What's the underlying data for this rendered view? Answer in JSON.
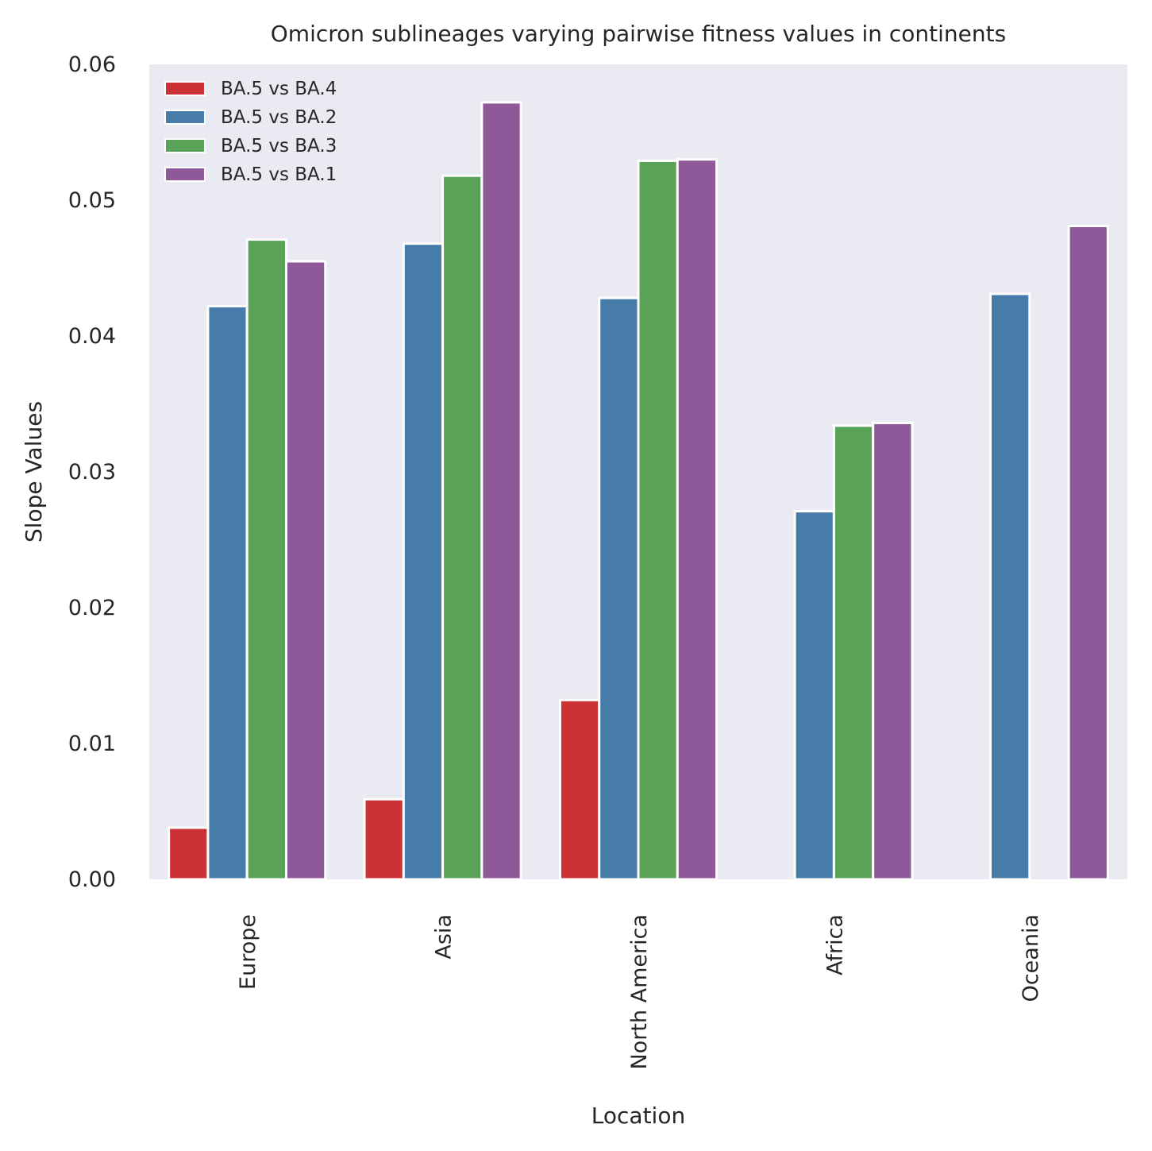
{
  "chart_data": {
    "type": "bar",
    "title": "Omicron sublineages varying pairwise fitness values in continents",
    "xlabel": "Location",
    "ylabel": "Slope Values",
    "categories": [
      "Europe",
      "Asia",
      "North America",
      "Africa",
      "Oceania"
    ],
    "series": [
      {
        "name": "BA.5 vs BA.4",
        "color": "#CC3135",
        "values": [
          0.0038,
          0.0059,
          0.0132,
          null,
          null
        ]
      },
      {
        "name": "BA.5 vs BA.2",
        "color": "#477CA8",
        "values": [
          0.0422,
          0.0468,
          0.0428,
          0.0271,
          0.0431
        ]
      },
      {
        "name": "BA.5 vs BA.3",
        "color": "#59A257",
        "values": [
          0.0471,
          0.0518,
          0.0529,
          0.0334,
          null
        ]
      },
      {
        "name": "BA.5 vs BA.1",
        "color": "#8F5898",
        "values": [
          0.0455,
          0.0572,
          0.053,
          0.0336,
          0.0481
        ]
      }
    ],
    "ylim": [
      0,
      0.06
    ],
    "yticks": [
      "0.00",
      "0.01",
      "0.02",
      "0.03",
      "0.04",
      "0.05",
      "0.06"
    ],
    "grid": false,
    "legend_position": "top-left",
    "plot_background": "#EAEAF2"
  }
}
